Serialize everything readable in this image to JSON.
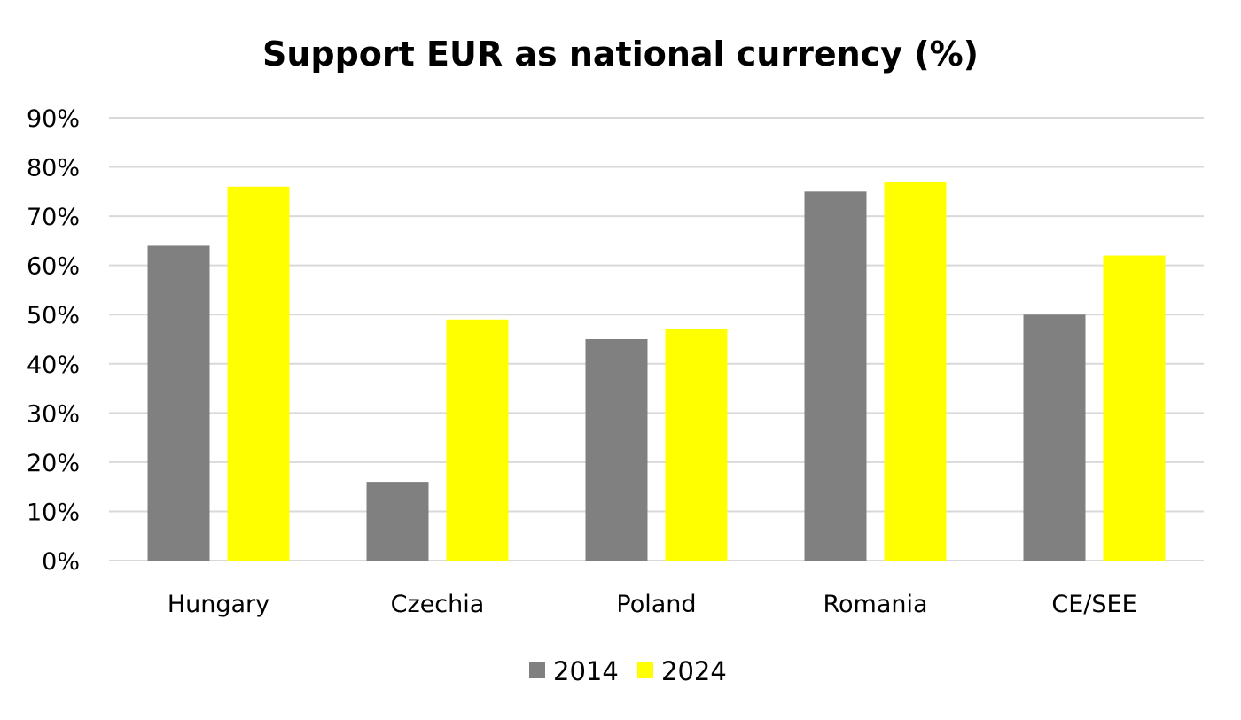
{
  "chart_data": {
    "type": "bar",
    "title": "Support EUR as national currency (%)",
    "xlabel": "",
    "ylabel": "",
    "categories": [
      "Hungary",
      "Czechia",
      "Poland",
      "Romania",
      "CE/SEE"
    ],
    "series": [
      {
        "name": "2014",
        "color": "#808080",
        "values": [
          64,
          16,
          45,
          75,
          50
        ]
      },
      {
        "name": "2024",
        "color": "#ffff00",
        "values": [
          76,
          49,
          47,
          77,
          62
        ]
      }
    ],
    "ylim": [
      0,
      90
    ],
    "yticks": [
      0,
      10,
      20,
      30,
      40,
      50,
      60,
      70,
      80,
      90
    ],
    "ytick_labels": [
      "0%",
      "10%",
      "20%",
      "30%",
      "40%",
      "50%",
      "60%",
      "70%",
      "80%",
      "90%"
    ],
    "grid": true,
    "legend": "bottom-center"
  }
}
